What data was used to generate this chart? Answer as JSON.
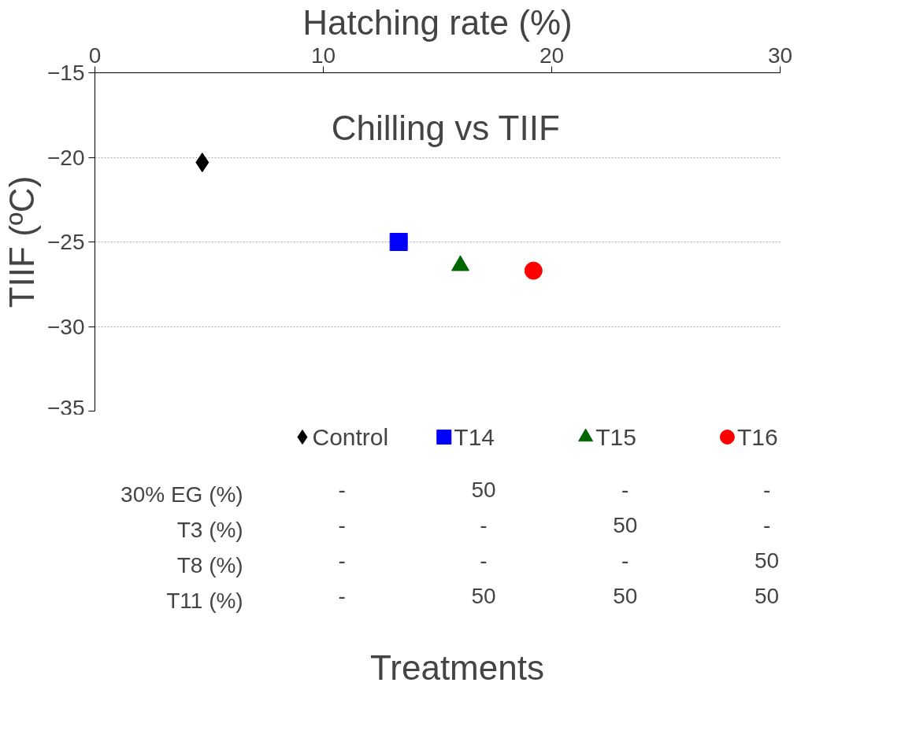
{
  "chart_data": {
    "type": "scatter",
    "title": "Chilling vs TIIF",
    "xlabel": "Hatching rate (%)",
    "ylabel": "TIIF (ºC)",
    "xlim": [
      0,
      30
    ],
    "xticks": [
      0,
      10,
      20,
      30
    ],
    "ylim": [
      -35,
      -15
    ],
    "yticks": [
      -35,
      -30,
      -25,
      -20,
      -15
    ],
    "grid": "y",
    "legend": "bottom",
    "series": [
      {
        "name": "Control",
        "color": "#000000",
        "marker": "diamond",
        "x": [
          4.7
        ],
        "values": [
          -20.3
        ]
      },
      {
        "name": "T14",
        "color": "#0000ff",
        "marker": "square",
        "x": [
          13.3
        ],
        "values": [
          -25.0
        ]
      },
      {
        "name": "T15",
        "color": "#006600",
        "marker": "triangle",
        "x": [
          16.0
        ],
        "values": [
          -26.4
        ]
      },
      {
        "name": "T16",
        "color": "#ff0000",
        "marker": "circle",
        "x": [
          19.2
        ],
        "values": [
          -26.7
        ]
      }
    ],
    "annotations": [
      "Treatments",
      "30% EG (%)",
      "-",
      "50",
      "-",
      "-",
      "T3 (%)",
      "-",
      "-",
      "50",
      "-",
      "T8 (%)",
      "-",
      "-",
      "-",
      "50",
      "T11 (%)",
      "-",
      "50",
      "50",
      "50"
    ]
  }
}
